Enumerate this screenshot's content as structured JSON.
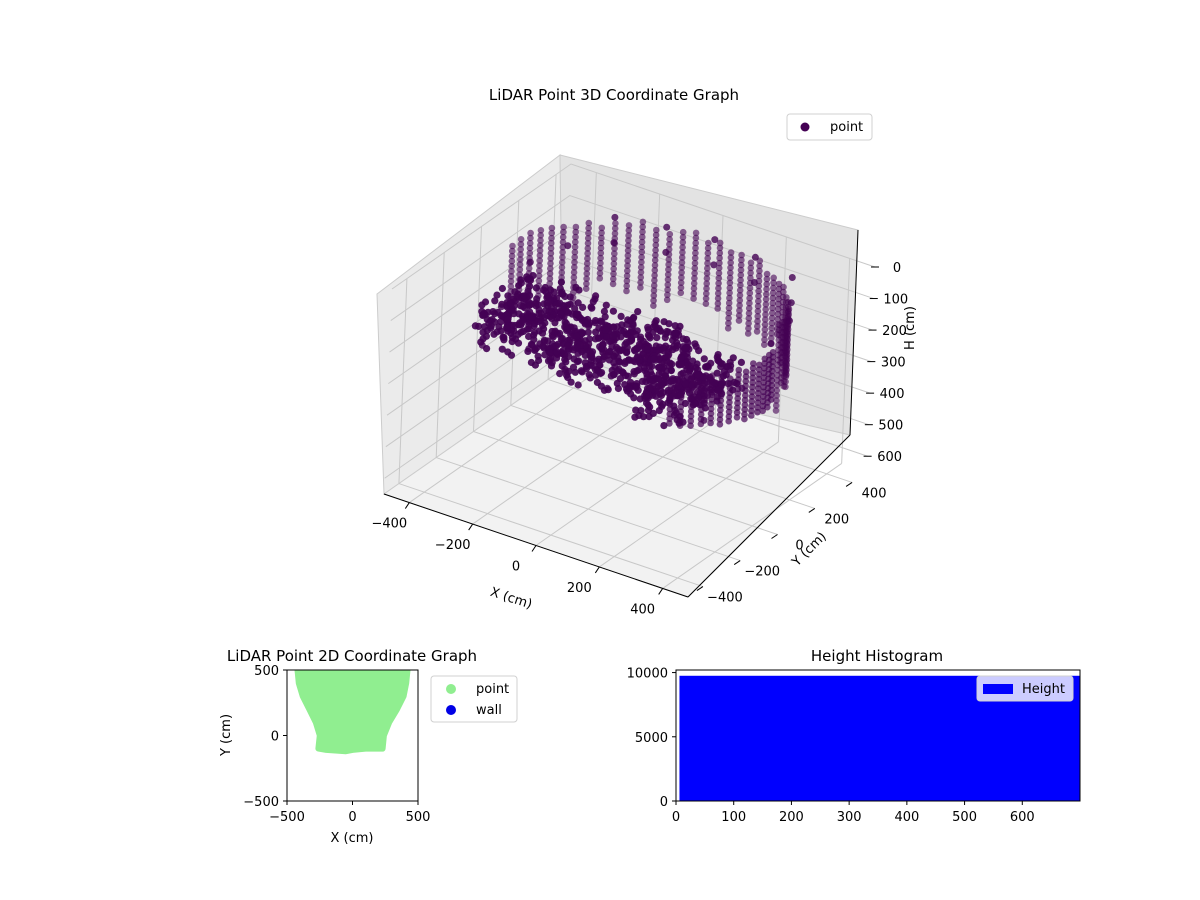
{
  "figure": {
    "background": "#ffffff"
  },
  "chart_data": [
    {
      "type": "scatter",
      "projection": "3d",
      "title": "LiDAR Point 3D Coordinate Graph",
      "xlabel": "X (cm)",
      "ylabel": "Y (cm)",
      "zlabel": "H (cm)",
      "xlim": [
        -480,
        480
      ],
      "ylim": [
        -480,
        480
      ],
      "zlim": [
        650,
        0
      ],
      "z_inverted": true,
      "x_ticks": [
        -400,
        -200,
        0,
        200,
        400
      ],
      "y_ticks": [
        -400,
        -200,
        0,
        200,
        400
      ],
      "z_ticks": [
        0,
        100,
        200,
        300,
        400,
        500,
        600
      ],
      "grid": true,
      "legend": {
        "position": "top-right",
        "entries": [
          "point"
        ]
      },
      "series": [
        {
          "name": "point",
          "color": "#440154",
          "marker": "circle",
          "approximate_points": [
            [
              -280,
              380,
              60
            ],
            [
              -140,
              420,
              60
            ],
            [
              0,
              440,
              60
            ],
            [
              140,
              420,
              60
            ],
            [
              280,
              380,
              60
            ],
            [
              -280,
              380,
              140
            ],
            [
              -140,
              420,
              140
            ],
            [
              0,
              440,
              140
            ],
            [
              140,
              420,
              140
            ],
            [
              280,
              380,
              140
            ],
            [
              -350,
              250,
              120
            ],
            [
              350,
              250,
              120
            ],
            [
              -380,
              100,
              120
            ],
            [
              380,
              100,
              120
            ],
            [
              -380,
              -50,
              200
            ],
            [
              380,
              -50,
              200
            ],
            [
              -350,
              -200,
              250
            ],
            [
              350,
              -200,
              250
            ],
            [
              -250,
              -120,
              260
            ],
            [
              -120,
              -140,
              280
            ],
            [
              0,
              -120,
              300
            ],
            [
              120,
              -100,
              290
            ],
            [
              250,
              -60,
              270
            ],
            [
              -200,
              0,
              230
            ],
            [
              -50,
              20,
              250
            ],
            [
              100,
              10,
              240
            ],
            [
              220,
              30,
              220
            ]
          ]
        }
      ]
    },
    {
      "type": "scatter",
      "title": "LiDAR Point 2D Coordinate Graph",
      "xlabel": "X (cm)",
      "ylabel": "Y (cm)",
      "xlim": [
        -500,
        500
      ],
      "ylim": [
        -500,
        500
      ],
      "x_ticks": [
        -500,
        0,
        500
      ],
      "y_ticks": [
        -500,
        0,
        500
      ],
      "legend": {
        "position": "outside-right",
        "entries": [
          "point",
          "wall"
        ]
      },
      "series": [
        {
          "name": "point",
          "color": "#90ee90",
          "region_outline": [
            [
              -420,
              500
            ],
            [
              -410,
              400
            ],
            [
              -380,
              300
            ],
            [
              -330,
              200
            ],
            [
              -280,
              100
            ],
            [
              -250,
              0
            ],
            [
              -260,
              -100
            ],
            [
              -200,
              -110
            ],
            [
              -50,
              -120
            ],
            [
              0,
              -110
            ],
            [
              100,
              -100
            ],
            [
              230,
              -100
            ],
            [
              240,
              0
            ],
            [
              280,
              100
            ],
            [
              340,
              200
            ],
            [
              390,
              300
            ],
            [
              410,
              400
            ],
            [
              420,
              500
            ]
          ]
        },
        {
          "name": "wall",
          "color": "#0000e6",
          "points": []
        }
      ]
    },
    {
      "type": "bar",
      "title": "Height Histogram",
      "xlabel": "",
      "ylabel": "",
      "xlim": [
        0,
        700
      ],
      "ylim": [
        0,
        10200
      ],
      "x_ticks": [
        0,
        100,
        200,
        300,
        400,
        500,
        600
      ],
      "y_ticks": [
        0,
        5000,
        10000
      ],
      "legend": {
        "position": "top-right",
        "entries": [
          "Height"
        ]
      },
      "series": [
        {
          "name": "Height",
          "color": "#0000ff",
          "bins": [
            {
              "x0": 6,
              "x1": 700,
              "count": 9750
            }
          ]
        }
      ]
    }
  ]
}
